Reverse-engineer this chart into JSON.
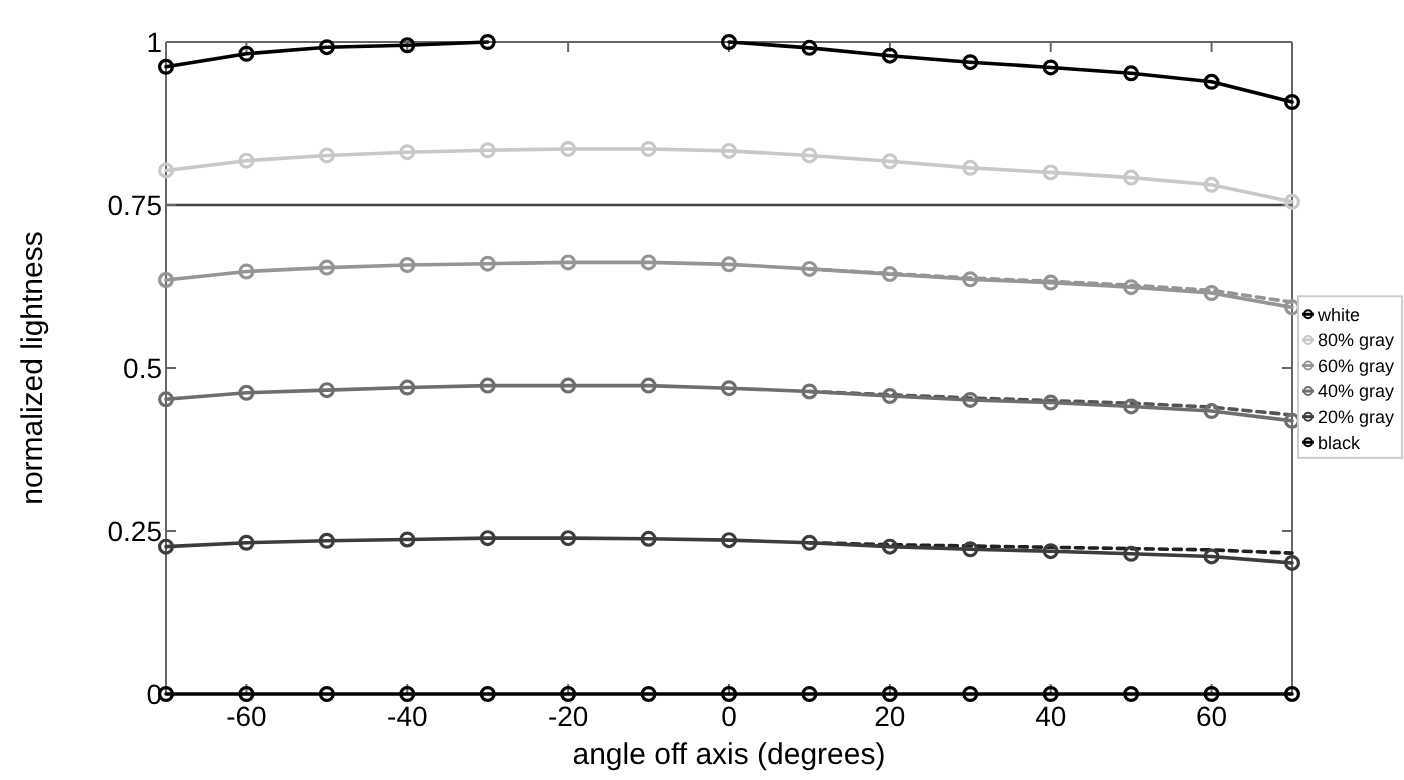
{
  "chart_data": {
    "type": "line",
    "xlabel": "angle off axis (degrees)",
    "ylabel": "normalized lightness",
    "x": [
      -70,
      -60,
      -50,
      -40,
      -30,
      -20,
      -10,
      0,
      10,
      20,
      30,
      40,
      50,
      60,
      70
    ],
    "xlim": [
      -70,
      70
    ],
    "xticks": [
      -60,
      -40,
      -20,
      0,
      20,
      40,
      60
    ],
    "ylim": [
      0,
      1
    ],
    "yticks": [
      0,
      0.25,
      0.5,
      0.75,
      1
    ],
    "grid": false,
    "legend": "right",
    "marker": "circle",
    "line_style": "solid",
    "ref_lines": [
      {
        "axis": "y",
        "value": 0.75,
        "color": "#404040"
      }
    ],
    "series": [
      {
        "name": "white",
        "color": "#000000",
        "values": [
          0.962,
          0.982,
          0.992,
          0.995,
          1.0,
          null,
          null,
          1.0,
          0.991,
          0.979,
          0.969,
          0.961,
          0.952,
          0.939,
          0.908
        ]
      },
      {
        "name": "80% gray",
        "color": "#c8c8c8",
        "values": [
          0.803,
          0.818,
          0.826,
          0.831,
          0.834,
          0.836,
          0.836,
          0.833,
          0.826,
          0.817,
          0.807,
          0.8,
          0.792,
          0.781,
          0.755
        ]
      },
      {
        "name": "60% gray",
        "color": "#959595",
        "values": [
          0.635,
          0.648,
          0.654,
          0.658,
          0.66,
          0.662,
          0.662,
          0.659,
          0.652,
          0.644,
          0.636,
          0.631,
          0.624,
          0.615,
          0.593
        ]
      },
      {
        "name": "40% gray",
        "color": "#6e6e6e",
        "values": [
          0.452,
          0.462,
          0.466,
          0.47,
          0.473,
          0.473,
          0.473,
          0.469,
          0.464,
          0.457,
          0.451,
          0.447,
          0.441,
          0.434,
          0.419
        ]
      },
      {
        "name": "20% gray",
        "color": "#3c3c3c",
        "values": [
          0.226,
          0.232,
          0.235,
          0.237,
          0.239,
          0.239,
          0.238,
          0.236,
          0.232,
          0.226,
          0.222,
          0.219,
          0.215,
          0.211,
          0.201
        ]
      },
      {
        "name": "black",
        "color": "#000000",
        "values": [
          0,
          0,
          0,
          0,
          0,
          0,
          0,
          0,
          0,
          0,
          0,
          0,
          0,
          0,
          0
        ]
      },
      {
        "color": "#959595",
        "marker": "none",
        "line_style": "dashed",
        "values": [
          null,
          null,
          null,
          null,
          null,
          null,
          null,
          null,
          0.652,
          0.645,
          0.638,
          0.633,
          0.627,
          0.619,
          0.601
        ]
      },
      {
        "color": "#555555",
        "marker": "none",
        "line_style": "dashed",
        "values": [
          null,
          null,
          null,
          null,
          null,
          null,
          null,
          null,
          0.464,
          0.459,
          0.454,
          0.45,
          0.446,
          0.44,
          0.428
        ]
      },
      {
        "color": "#222222",
        "marker": "none",
        "line_style": "dashed",
        "values": [
          null,
          null,
          null,
          null,
          null,
          null,
          null,
          null,
          0.232,
          0.229,
          0.227,
          0.225,
          0.223,
          0.221,
          0.216
        ]
      }
    ]
  }
}
